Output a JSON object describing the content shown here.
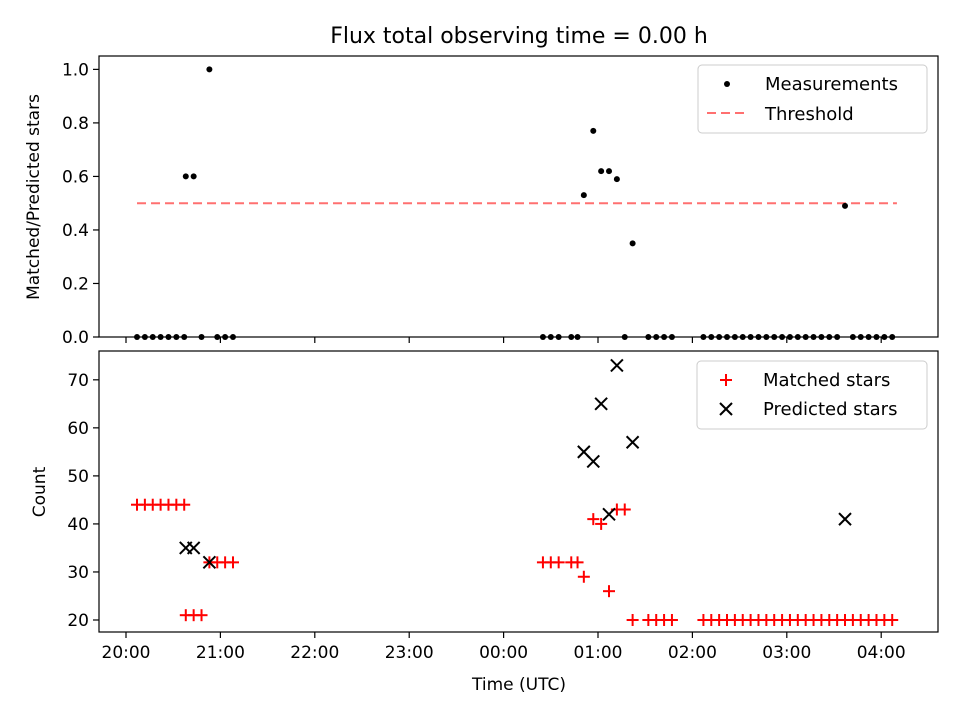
{
  "title": "Flux total observing time = 0.00 h",
  "colors": {
    "threshold": "#ff7070",
    "matched": "#ff0000",
    "predicted": "#000000",
    "measurements": "#000000"
  },
  "chart_data": [
    {
      "type": "scatter",
      "ylabel": "Matched/Predicted stars",
      "ylim": [
        0,
        1.05
      ],
      "yticks": [
        "0.0",
        "0.2",
        "0.4",
        "0.6",
        "0.8",
        "1.0"
      ],
      "ytick_values": [
        0,
        0.2,
        0.4,
        0.6,
        0.8,
        1.0
      ],
      "legend": {
        "position": "top-right",
        "entries": [
          "Measurements",
          "Threshold"
        ]
      },
      "threshold": {
        "name": "Threshold",
        "value": 0.5,
        "x_range": [
          "20:07",
          "04:10"
        ]
      },
      "series": [
        {
          "name": "Measurements",
          "marker": "dot",
          "points": [
            [
              "20:07",
              0
            ],
            [
              "20:12",
              0
            ],
            [
              "20:17",
              0
            ],
            [
              "20:22",
              0
            ],
            [
              "20:27",
              0
            ],
            [
              "20:32",
              0
            ],
            [
              "20:37",
              0
            ],
            [
              "20:38",
              0.6
            ],
            [
              "20:43",
              0.6
            ],
            [
              "20:48",
              0
            ],
            [
              "20:53",
              1.0
            ],
            [
              "20:58",
              0
            ],
            [
              "21:03",
              0
            ],
            [
              "21:08",
              0
            ],
            [
              "00:25",
              0
            ],
            [
              "00:30",
              0
            ],
            [
              "00:35",
              0
            ],
            [
              "00:43",
              0
            ],
            [
              "00:47",
              0
            ],
            [
              "00:51",
              0.53
            ],
            [
              "00:57",
              0.77
            ],
            [
              "01:02",
              0.62
            ],
            [
              "01:07",
              0.62
            ],
            [
              "01:12",
              0.59
            ],
            [
              "01:17",
              0
            ],
            [
              "01:22",
              0.35
            ],
            [
              "01:32",
              0
            ],
            [
              "01:37",
              0
            ],
            [
              "01:42",
              0
            ],
            [
              "01:47",
              0
            ],
            [
              "02:07",
              0
            ],
            [
              "02:12",
              0
            ],
            [
              "02:17",
              0
            ],
            [
              "02:22",
              0
            ],
            [
              "02:27",
              0
            ],
            [
              "02:32",
              0
            ],
            [
              "02:37",
              0
            ],
            [
              "02:42",
              0
            ],
            [
              "02:47",
              0
            ],
            [
              "02:52",
              0
            ],
            [
              "02:57",
              0
            ],
            [
              "03:02",
              0
            ],
            [
              "03:07",
              0
            ],
            [
              "03:12",
              0
            ],
            [
              "03:17",
              0
            ],
            [
              "03:22",
              0
            ],
            [
              "03:27",
              0
            ],
            [
              "03:32",
              0
            ],
            [
              "03:37",
              0.49
            ],
            [
              "03:42",
              0
            ],
            [
              "03:47",
              0
            ],
            [
              "03:52",
              0
            ],
            [
              "03:57",
              0
            ],
            [
              "04:02",
              0
            ],
            [
              "04:07",
              0
            ]
          ]
        }
      ]
    },
    {
      "type": "scatter",
      "xlabel": "Time (UTC)",
      "ylabel": "Count",
      "ylim": [
        17.5,
        76
      ],
      "yticks": [
        "20",
        "30",
        "40",
        "50",
        "60",
        "70"
      ],
      "ytick_values": [
        20,
        30,
        40,
        50,
        60,
        70
      ],
      "xticks": [
        "20:00",
        "21:00",
        "22:00",
        "23:00",
        "00:00",
        "01:00",
        "02:00",
        "03:00",
        "04:00"
      ],
      "legend": {
        "position": "top-right",
        "entries": [
          "Matched stars",
          "Predicted stars"
        ]
      },
      "series": [
        {
          "name": "Matched stars",
          "marker": "plus",
          "points": [
            [
              "20:07",
              44
            ],
            [
              "20:12",
              44
            ],
            [
              "20:17",
              44
            ],
            [
              "20:22",
              44
            ],
            [
              "20:27",
              44
            ],
            [
              "20:32",
              44
            ],
            [
              "20:37",
              44
            ],
            [
              "20:38",
              21
            ],
            [
              "20:43",
              21
            ],
            [
              "20:48",
              21
            ],
            [
              "20:53",
              32
            ],
            [
              "20:58",
              32
            ],
            [
              "21:03",
              32
            ],
            [
              "21:08",
              32
            ],
            [
              "00:25",
              32
            ],
            [
              "00:30",
              32
            ],
            [
              "00:35",
              32
            ],
            [
              "00:43",
              32
            ],
            [
              "00:47",
              32
            ],
            [
              "00:51",
              29
            ],
            [
              "00:57",
              41
            ],
            [
              "01:02",
              40
            ],
            [
              "01:07",
              26
            ],
            [
              "01:12",
              43
            ],
            [
              "01:17",
              43
            ],
            [
              "01:22",
              20
            ],
            [
              "01:32",
              20
            ],
            [
              "01:37",
              20
            ],
            [
              "01:42",
              20
            ],
            [
              "01:47",
              20
            ],
            [
              "02:07",
              20
            ],
            [
              "02:12",
              20
            ],
            [
              "02:17",
              20
            ],
            [
              "02:22",
              20
            ],
            [
              "02:27",
              20
            ],
            [
              "02:32",
              20
            ],
            [
              "02:37",
              20
            ],
            [
              "02:42",
              20
            ],
            [
              "02:47",
              20
            ],
            [
              "02:52",
              20
            ],
            [
              "02:57",
              20
            ],
            [
              "03:02",
              20
            ],
            [
              "03:07",
              20
            ],
            [
              "03:12",
              20
            ],
            [
              "03:17",
              20
            ],
            [
              "03:22",
              20
            ],
            [
              "03:27",
              20
            ],
            [
              "03:32",
              20
            ],
            [
              "03:37",
              20
            ],
            [
              "03:42",
              20
            ],
            [
              "03:47",
              20
            ],
            [
              "03:52",
              20
            ],
            [
              "03:57",
              20
            ],
            [
              "04:02",
              20
            ],
            [
              "04:07",
              20
            ]
          ]
        },
        {
          "name": "Predicted stars",
          "marker": "x",
          "points": [
            [
              "20:38",
              35
            ],
            [
              "20:43",
              35
            ],
            [
              "20:53",
              32
            ],
            [
              "00:51",
              55
            ],
            [
              "00:57",
              53
            ],
            [
              "01:02",
              65
            ],
            [
              "01:07",
              42
            ],
            [
              "01:12",
              73
            ],
            [
              "01:22",
              57
            ],
            [
              "03:37",
              41
            ]
          ]
        }
      ]
    }
  ]
}
